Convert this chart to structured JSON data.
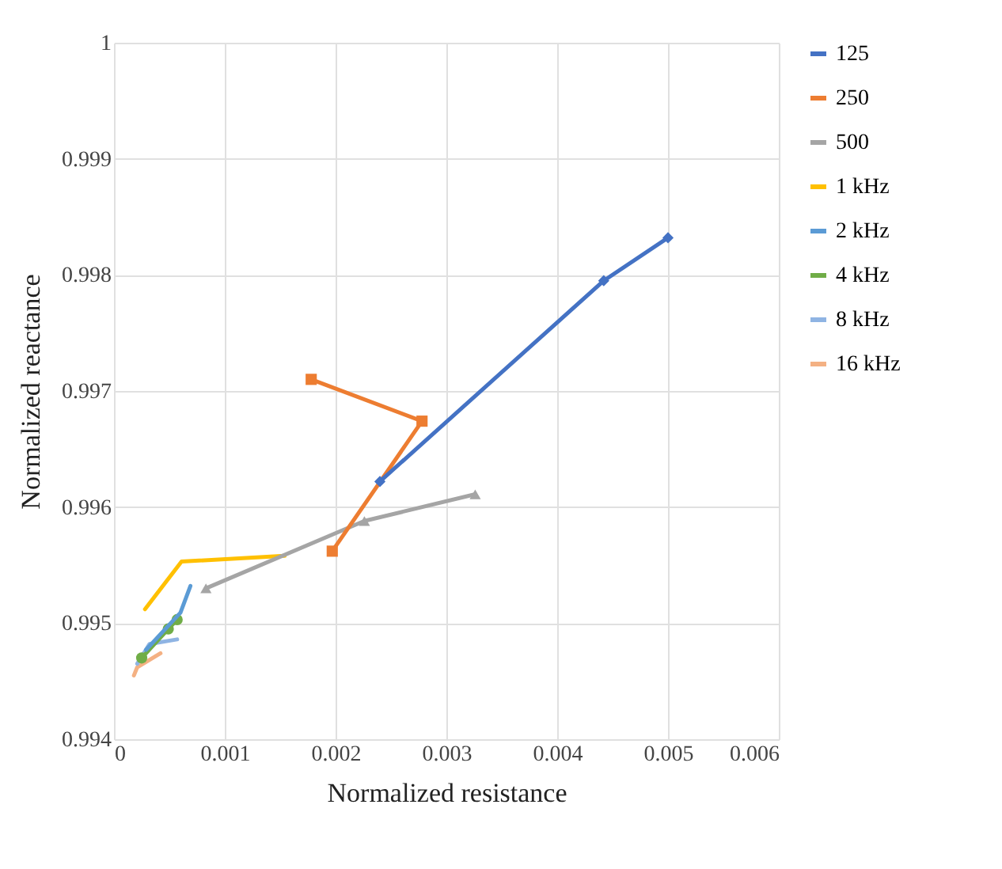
{
  "chart_data": {
    "type": "line",
    "xlabel": "Normalized resistance",
    "ylabel": "Normalized reactance",
    "xlim": [
      0,
      0.006
    ],
    "xticks": [
      0,
      0.001,
      0.002,
      0.003,
      0.004,
      0.005,
      0.006
    ],
    "ylim": [
      0.994,
      1
    ],
    "yticks": [
      0.994,
      0.995,
      0.996,
      0.997,
      0.998,
      0.999,
      1
    ],
    "grid": true,
    "legend": "right",
    "series": [
      {
        "name": "125",
        "color": "#4472c4",
        "marker": "diamond",
        "x": [
          0.005,
          0.00442,
          0.0024
        ],
        "values": [
          0.99832,
          0.99795,
          0.99622
        ]
      },
      {
        "name": "250",
        "color": "#ed7d31",
        "marker": "square",
        "x": [
          0.00178,
          0.00278,
          0.00197
        ],
        "values": [
          0.9971,
          0.99674,
          0.99562
        ]
      },
      {
        "name": "500",
        "color": "#a5a5a5",
        "marker": "triangle",
        "x": [
          0.00326,
          0.00226,
          0.00083
        ],
        "values": [
          0.99611,
          0.99588,
          0.9953
        ]
      },
      {
        "name": "1 kHz",
        "color": "#ffc000",
        "marker": "none",
        "x": [
          0.00154,
          0.00061,
          0.00028
        ],
        "values": [
          0.99558,
          0.99553,
          0.99512
        ]
      },
      {
        "name": "2 kHz",
        "color": "#5b9bd5",
        "marker": "none",
        "x": [
          0.00069,
          0.0006,
          0.00029
        ],
        "values": [
          0.99532,
          0.99509,
          0.99477
        ]
      },
      {
        "name": "4 kHz",
        "color": "#70ad47",
        "marker": "circle",
        "x": [
          0.00057,
          0.00049,
          0.00025
        ],
        "values": [
          0.99503,
          0.99495,
          0.9947
        ]
      },
      {
        "name": "8 kHz",
        "color": "#8fb4e3",
        "marker": "none",
        "x": [
          0.00057,
          0.00032,
          0.00021
        ],
        "values": [
          0.99486,
          0.99482,
          0.99465
        ]
      },
      {
        "name": "16 kHz",
        "color": "#f4b183",
        "marker": "none",
        "x": [
          0.00042,
          0.00021,
          0.00018
        ],
        "values": [
          0.99474,
          0.99462,
          0.99455
        ]
      }
    ]
  }
}
